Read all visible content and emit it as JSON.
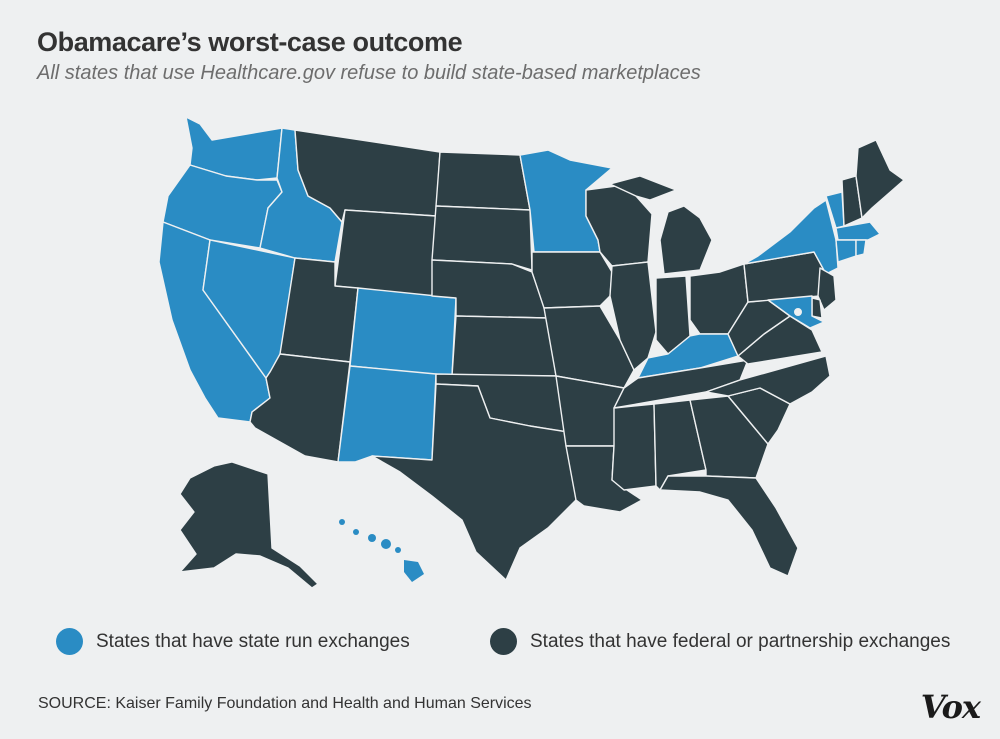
{
  "header": {
    "title": "Obamacare’s worst-case outcome",
    "subtitle": "All states that use Healthcare.gov refuse to build state-based marketplaces"
  },
  "colors": {
    "state_run": "#2a8cc4",
    "federal": "#2d3f45",
    "background": "#eef0f1"
  },
  "legend": [
    {
      "label": "States that have state run exchanges",
      "color": "#2a8cc4"
    },
    {
      "label": "States that have federal or partnership exchanges",
      "color": "#2d3f45"
    }
  ],
  "source": "SOURCE: Kaiser Family Foundation and Health and Human Services",
  "logo": "Vox",
  "state_exchanges": {
    "state_run": [
      "Washington",
      "Oregon",
      "California",
      "Nevada",
      "Idaho",
      "Colorado",
      "New Mexico",
      "Minnesota",
      "Kentucky",
      "New York",
      "Vermont",
      "Massachusetts",
      "Connecticut",
      "Rhode Island",
      "Maryland",
      "District of Columbia",
      "Hawaii"
    ],
    "federal_or_partnership": [
      "Montana",
      "Wyoming",
      "Utah",
      "Arizona",
      "North Dakota",
      "South Dakota",
      "Nebraska",
      "Kansas",
      "Oklahoma",
      "Texas",
      "Iowa",
      "Missouri",
      "Arkansas",
      "Louisiana",
      "Wisconsin",
      "Illinois",
      "Michigan",
      "Indiana",
      "Ohio",
      "Tennessee",
      "Mississippi",
      "Alabama",
      "Georgia",
      "Florida",
      "South Carolina",
      "North Carolina",
      "Virginia",
      "West Virginia",
      "Pennsylvania",
      "New Jersey",
      "Delaware",
      "New Hampshire",
      "Maine",
      "Alaska"
    ]
  }
}
